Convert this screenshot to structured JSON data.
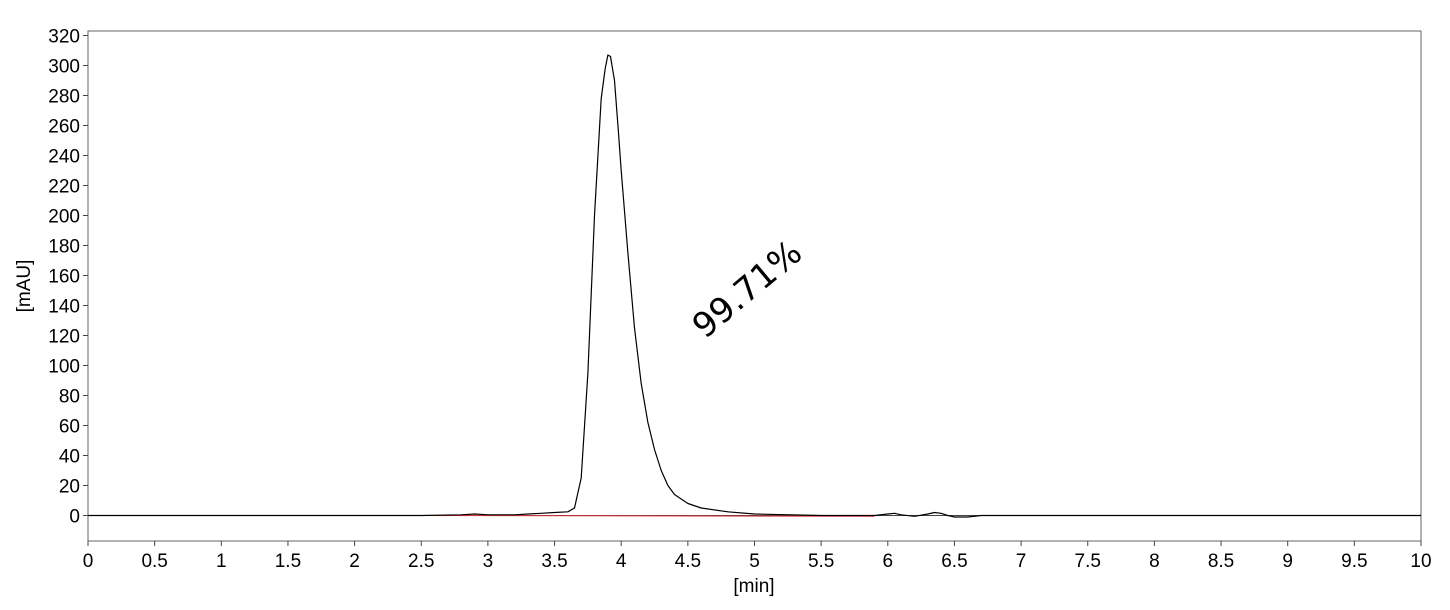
{
  "chart_data": {
    "type": "line",
    "xlabel": "[min]",
    "ylabel": "[mAU]",
    "xlim": [
      0,
      10
    ],
    "ylim": [
      -17,
      323
    ],
    "x_ticks": [
      "0",
      "0.5",
      "1",
      "1.5",
      "2",
      "2.5",
      "3",
      "3.5",
      "4",
      "4.5",
      "5",
      "5.5",
      "6",
      "6.5",
      "7",
      "7.5",
      "8",
      "8.5",
      "9",
      "9.5",
      "10"
    ],
    "x_tick_values": [
      0,
      0.5,
      1,
      1.5,
      2,
      2.5,
      3,
      3.5,
      4,
      4.5,
      5,
      5.5,
      6,
      6.5,
      7,
      7.5,
      8,
      8.5,
      9,
      9.5,
      10
    ],
    "y_ticks": [
      "0",
      "20",
      "40",
      "60",
      "80",
      "100",
      "120",
      "140",
      "160",
      "180",
      "200",
      "220",
      "240",
      "260",
      "280",
      "300",
      "320"
    ],
    "y_tick_values": [
      0,
      20,
      40,
      60,
      80,
      100,
      120,
      140,
      160,
      180,
      200,
      220,
      240,
      260,
      280,
      300,
      320
    ],
    "grid": false,
    "series": [
      {
        "color": "#000000",
        "x": [
          0,
          1,
          2,
          2.5,
          2.8,
          2.9,
          3.0,
          3.1,
          3.2,
          3.3,
          3.4,
          3.5,
          3.6,
          3.65,
          3.7,
          3.75,
          3.8,
          3.85,
          3.88,
          3.9,
          3.92,
          3.95,
          3.98,
          4.0,
          4.05,
          4.1,
          4.15,
          4.2,
          4.25,
          4.3,
          4.35,
          4.4,
          4.5,
          4.6,
          4.8,
          5.0,
          5.5,
          5.9,
          6.0,
          6.05,
          6.1,
          6.2,
          6.3,
          6.35,
          6.4,
          6.45,
          6.5,
          6.6,
          6.7,
          7,
          8,
          9,
          10
        ],
        "y": [
          0,
          0,
          0,
          0,
          0.5,
          1,
          0.5,
          0.5,
          0.5,
          1,
          1.5,
          2,
          2.5,
          5,
          25,
          95,
          200,
          278,
          298,
          307,
          306,
          290,
          255,
          230,
          175,
          125,
          88,
          62,
          44,
          30,
          20,
          14,
          8,
          5,
          2.5,
          1,
          0,
          0,
          1,
          1.5,
          0.5,
          -0.5,
          1,
          2,
          1.5,
          0,
          -1,
          -1,
          0,
          0,
          0,
          0,
          0
        ]
      },
      {
        "color": "#e03030",
        "x": [
          2.5,
          5.9
        ],
        "y": [
          0,
          -0.5
        ]
      }
    ],
    "annotations": [
      {
        "text": "99.71%",
        "x": 5.0,
        "y": 145,
        "rotation": -40
      }
    ],
    "legend": "none"
  }
}
